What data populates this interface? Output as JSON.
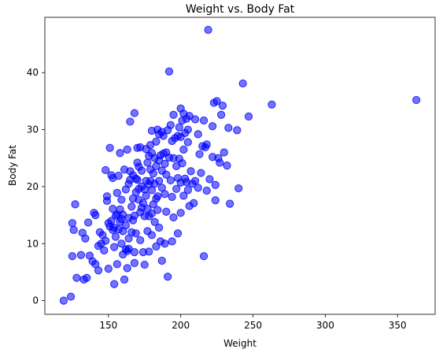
{
  "chart_data": {
    "type": "scatter",
    "title": "Weight vs. Body Fat",
    "xlabel": "Weight",
    "ylabel": "Body Fat",
    "xlim": [
      106,
      376
    ],
    "ylim": [
      -2.4,
      49.7
    ],
    "xticks": [
      150,
      200,
      250,
      300,
      350
    ],
    "yticks": [
      0,
      10,
      20,
      30,
      40
    ],
    "grid": false,
    "marker_color": "#0000ff",
    "marker_alpha": 0.55,
    "series": [
      {
        "points": [
          [
            119,
            0.0
          ],
          [
            124,
            0.7
          ],
          [
            125,
            13.6
          ],
          [
            126,
            12.4
          ],
          [
            127,
            16.9
          ],
          [
            125,
            7.8
          ],
          [
            128,
            4.0
          ],
          [
            131,
            8.0
          ],
          [
            132,
            11.9
          ],
          [
            133,
            3.7
          ],
          [
            134,
            10.9
          ],
          [
            135,
            4.0
          ],
          [
            136,
            13.7
          ],
          [
            137,
            7.9
          ],
          [
            139,
            6.9
          ],
          [
            140,
            15.4
          ],
          [
            141,
            15.0
          ],
          [
            141,
            6.4
          ],
          [
            143,
            5.3
          ],
          [
            143,
            9.6
          ],
          [
            144,
            12.0
          ],
          [
            145,
            10.0
          ],
          [
            146,
            11.5
          ],
          [
            147,
            8.8
          ],
          [
            148,
            10.5
          ],
          [
            148,
            22.9
          ],
          [
            149,
            18.3
          ],
          [
            149,
            17.5
          ],
          [
            150,
            13.6
          ],
          [
            150,
            5.6
          ],
          [
            151,
            26.8
          ],
          [
            151,
            13.0
          ],
          [
            152,
            22.0
          ],
          [
            152,
            14.0
          ],
          [
            153,
            21.5
          ],
          [
            153,
            16.1
          ],
          [
            153,
            12.4
          ],
          [
            154,
            12.8
          ],
          [
            154,
            9.4
          ],
          [
            154,
            2.9
          ],
          [
            155,
            14.9
          ],
          [
            155,
            11.2
          ],
          [
            156,
            18.9
          ],
          [
            156,
            15.1
          ],
          [
            156,
            6.4
          ],
          [
            157,
            12.5
          ],
          [
            157,
            21.9
          ],
          [
            158,
            16.0
          ],
          [
            158,
            25.9
          ],
          [
            158,
            13.8
          ],
          [
            159,
            17.7
          ],
          [
            159,
            14.3
          ],
          [
            159,
            10.0
          ],
          [
            160,
            15.1
          ],
          [
            160,
            12.2
          ],
          [
            160,
            8.1
          ],
          [
            161,
            23.0
          ],
          [
            161,
            3.7
          ],
          [
            162,
            13.2
          ],
          [
            162,
            9.0
          ],
          [
            162,
            19.5
          ],
          [
            163,
            26.5
          ],
          [
            163,
            8.7
          ],
          [
            163,
            5.7
          ],
          [
            164,
            20.5
          ],
          [
            164,
            14.5
          ],
          [
            164,
            10.9
          ],
          [
            164,
            9.1
          ],
          [
            165,
            31.4
          ],
          [
            165,
            21.2
          ],
          [
            165,
            22.7
          ],
          [
            166,
            16.5
          ],
          [
            166,
            12.0
          ],
          [
            167,
            14.1
          ],
          [
            167,
            22.0
          ],
          [
            167,
            17.9
          ],
          [
            168,
            32.9
          ],
          [
            168,
            14.9
          ],
          [
            168,
            8.5
          ],
          [
            168,
            6.6
          ],
          [
            169,
            21.4
          ],
          [
            169,
            19.0
          ],
          [
            169,
            11.8
          ],
          [
            170,
            26.8
          ],
          [
            170,
            24.2
          ],
          [
            170,
            21.2
          ],
          [
            171,
            23.5
          ],
          [
            171,
            19.6
          ],
          [
            171,
            17.7
          ],
          [
            172,
            26.9
          ],
          [
            172,
            15.5
          ],
          [
            172,
            10.6
          ],
          [
            173,
            22.8
          ],
          [
            173,
            20.0
          ],
          [
            173,
            16.3
          ],
          [
            174,
            17.1
          ],
          [
            174,
            8.5
          ],
          [
            175,
            19.5
          ],
          [
            175,
            14.8
          ],
          [
            175,
            6.3
          ],
          [
            176,
            26.6
          ],
          [
            176,
            21.0
          ],
          [
            176,
            18.4
          ],
          [
            177,
            24.2
          ],
          [
            177,
            16.1
          ],
          [
            177,
            12.2
          ],
          [
            178,
            25.4
          ],
          [
            178,
            20.4
          ],
          [
            178,
            14.8
          ],
          [
            178,
            8.6
          ],
          [
            179,
            27.3
          ],
          [
            179,
            23.0
          ],
          [
            179,
            21.0
          ],
          [
            180,
            29.8
          ],
          [
            180,
            25.9
          ],
          [
            180,
            19.4
          ],
          [
            180,
            15.3
          ],
          [
            180,
            11.5
          ],
          [
            181,
            22.3
          ],
          [
            181,
            16.9
          ],
          [
            182,
            25.0
          ],
          [
            182,
            20.5
          ],
          [
            182,
            13.8
          ],
          [
            183,
            27.9
          ],
          [
            183,
            23.6
          ],
          [
            183,
            17.9
          ],
          [
            183,
            9.5
          ],
          [
            184,
            30.0
          ],
          [
            184,
            18.3
          ],
          [
            184,
            15.9
          ],
          [
            185,
            29.2
          ],
          [
            185,
            24.6
          ],
          [
            185,
            21.0
          ],
          [
            185,
            12.8
          ],
          [
            186,
            25.5
          ],
          [
            186,
            10.4
          ],
          [
            187,
            29.6
          ],
          [
            187,
            22.8
          ],
          [
            187,
            19.8
          ],
          [
            187,
            7.0
          ],
          [
            188,
            28.9
          ],
          [
            188,
            25.8
          ],
          [
            189,
            24.0
          ],
          [
            189,
            18.7
          ],
          [
            189,
            10.0
          ],
          [
            190,
            26.0
          ],
          [
            190,
            22.1
          ],
          [
            190,
            15.6
          ],
          [
            191,
            29.9
          ],
          [
            191,
            4.2
          ],
          [
            192,
            40.2
          ],
          [
            192,
            25.1
          ],
          [
            193,
            30.8
          ],
          [
            193,
            21.1
          ],
          [
            194,
            28.0
          ],
          [
            194,
            18.2
          ],
          [
            194,
            10.4
          ],
          [
            195,
            32.6
          ],
          [
            195,
            25.0
          ],
          [
            195,
            14.6
          ],
          [
            196,
            28.5
          ],
          [
            197,
            23.6
          ],
          [
            197,
            19.6
          ],
          [
            198,
            28.9
          ],
          [
            198,
            21.5
          ],
          [
            198,
            11.8
          ],
          [
            199,
            30.4
          ],
          [
            199,
            24.9
          ],
          [
            200,
            33.7
          ],
          [
            200,
            28.7
          ],
          [
            200,
            20.7
          ],
          [
            200,
            15.4
          ],
          [
            201,
            31.6
          ],
          [
            201,
            24.1
          ],
          [
            202,
            32.8
          ],
          [
            202,
            26.5
          ],
          [
            202,
            18.4
          ],
          [
            203,
            29.4
          ],
          [
            203,
            21.4
          ],
          [
            204,
            31.9
          ],
          [
            204,
            20.8
          ],
          [
            205,
            30.0
          ],
          [
            205,
            27.8
          ],
          [
            205,
            19.4
          ],
          [
            206,
            32.4
          ],
          [
            206,
            16.6
          ],
          [
            207,
            22.7
          ],
          [
            208,
            20.5
          ],
          [
            209,
            17.1
          ],
          [
            210,
            31.8
          ],
          [
            210,
            21.0
          ],
          [
            212,
            29.2
          ],
          [
            212,
            19.8
          ],
          [
            213,
            25.7
          ],
          [
            214,
            22.4
          ],
          [
            215,
            27.1
          ],
          [
            216,
            31.6
          ],
          [
            216,
            7.8
          ],
          [
            217,
            26.9
          ],
          [
            218,
            27.4
          ],
          [
            218,
            19.3
          ],
          [
            219,
            47.5
          ],
          [
            220,
            21.3
          ],
          [
            222,
            25.2
          ],
          [
            222,
            30.6
          ],
          [
            223,
            34.7
          ],
          [
            224,
            20.3
          ],
          [
            224,
            17.6
          ],
          [
            225,
            35.0
          ],
          [
            226,
            25.0
          ],
          [
            227,
            24.2
          ],
          [
            228,
            32.6
          ],
          [
            229,
            34.2
          ],
          [
            230,
            26.0
          ],
          [
            232,
            23.7
          ],
          [
            233,
            30.3
          ],
          [
            234,
            17.0
          ],
          [
            239,
            29.9
          ],
          [
            240,
            19.7
          ],
          [
            243,
            38.1
          ],
          [
            247,
            32.3
          ],
          [
            263,
            34.4
          ],
          [
            363,
            35.2
          ]
        ]
      }
    ]
  }
}
